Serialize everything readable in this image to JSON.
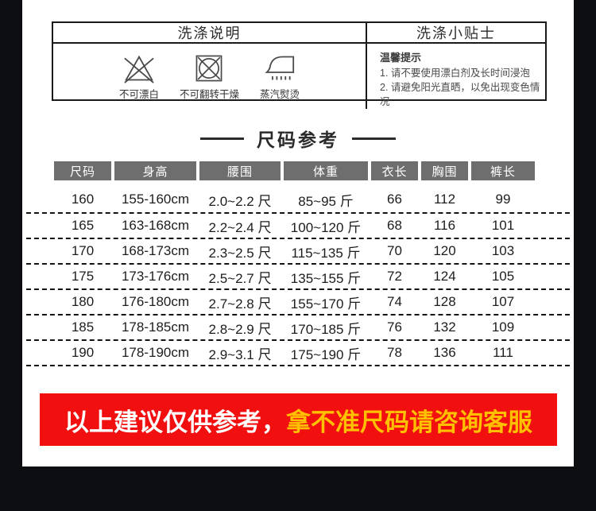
{
  "colors": {
    "frame": "#0d0e11",
    "red": "#f20f0f",
    "yellow": "#ffc000",
    "header-gray": "#6e6e6e"
  },
  "wash_section": {
    "left": {
      "title": "洗涤说明",
      "icons": [
        {
          "name": "no-bleach-icon",
          "label": "不可漂白"
        },
        {
          "name": "no-tumble-dry-icon",
          "label": "不可翻转干燥"
        },
        {
          "name": "steam-iron-icon",
          "label": "蒸汽熨烫"
        }
      ]
    },
    "right": {
      "title": "洗涤小贴士",
      "tips_title": "温馨提示",
      "tips": [
        "1. 请不要使用漂白剂及长时间浸泡",
        "2. 请避免阳光直晒，以免出现变色情况"
      ]
    }
  },
  "size_section": {
    "title": "尺码参考",
    "table": {
      "headers": [
        "尺码",
        "身高",
        "腰围",
        "体重",
        "衣长",
        "胸围",
        "裤长"
      ],
      "rows": [
        [
          "160",
          "155-160cm",
          "2.0~2.2 尺",
          "85~95 斤",
          "66",
          "112",
          "99"
        ],
        [
          "165",
          "163-168cm",
          "2.2~2.4 尺",
          "100~120 斤",
          "68",
          "116",
          "101"
        ],
        [
          "170",
          "168-173cm",
          "2.3~2.5 尺",
          "115~135 斤",
          "70",
          "120",
          "103"
        ],
        [
          "175",
          "173-176cm",
          "2.5~2.7 尺",
          "135~155 斤",
          "72",
          "124",
          "105"
        ],
        [
          "180",
          "176-180cm",
          "2.7~2.8 尺",
          "155~170 斤",
          "74",
          "128",
          "107"
        ],
        [
          "185",
          "178-185cm",
          "2.8~2.9 尺",
          "170~185 斤",
          "76",
          "132",
          "109"
        ],
        [
          "190",
          "178-190cm",
          "2.9~3.1 尺",
          "175~190 斤",
          "78",
          "136",
          "111"
        ]
      ]
    }
  },
  "notice": {
    "text_white": "以上建议仅供参考，",
    "text_yellow": "拿不准尺码请咨询客服"
  }
}
